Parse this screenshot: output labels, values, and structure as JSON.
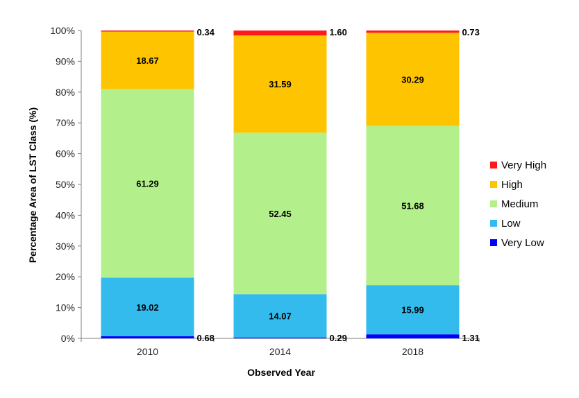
{
  "chart_data": {
    "type": "bar",
    "stacked": true,
    "categories": [
      "2010",
      "2014",
      "2018"
    ],
    "series": [
      {
        "name": "Very Low",
        "color": "#0000ff",
        "values": [
          0.68,
          0.29,
          1.31
        ]
      },
      {
        "name": "Low",
        "color": "#33bbee",
        "values": [
          19.02,
          14.07,
          15.99
        ]
      },
      {
        "name": "Medium",
        "color": "#b3f08c",
        "values": [
          61.29,
          52.45,
          51.68
        ]
      },
      {
        "name": "High",
        "color": "#ffc400",
        "values": [
          18.67,
          31.59,
          30.29
        ]
      },
      {
        "name": "Very High",
        "color": "#ff1a1a",
        "values": [
          0.34,
          1.6,
          0.73
        ]
      }
    ],
    "labels": [
      [
        "0.68",
        "19.02",
        "61.29",
        "18.67",
        "0.34"
      ],
      [
        "0.29",
        "14.07",
        "52.45",
        "31.59",
        "1.60"
      ],
      [
        "1.31",
        "15.99",
        "51.68",
        "30.29",
        "0.73"
      ]
    ],
    "xlabel": "Observed Year",
    "ylabel": "Percentage Area of LST Class (%)",
    "ylim": [
      0,
      100
    ],
    "yticks": [
      "0%",
      "10%",
      "20%",
      "30%",
      "40%",
      "50%",
      "60%",
      "70%",
      "80%",
      "90%",
      "100%"
    ],
    "legend_position": "right",
    "legend_order": [
      "Very High",
      "High",
      "Medium",
      "Low",
      "Very Low"
    ],
    "grid": false
  }
}
